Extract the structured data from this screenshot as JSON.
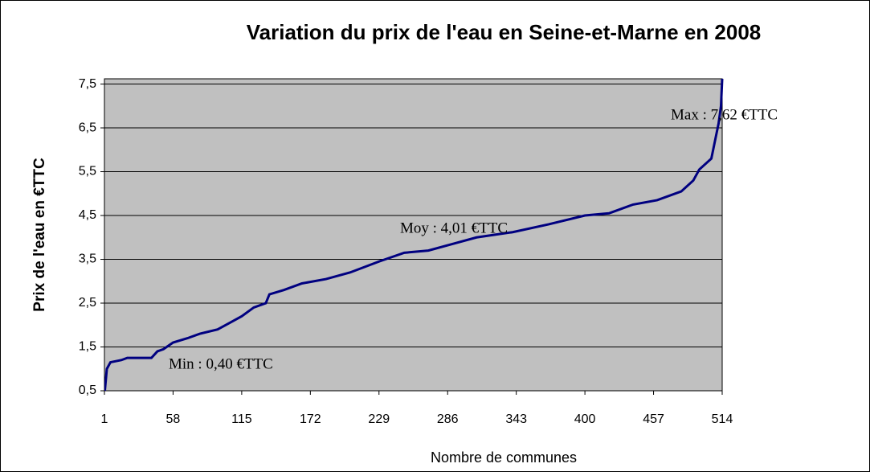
{
  "chart_data": {
    "type": "line",
    "title": "Variation du prix de l'eau en Seine-et-Marne en 2008",
    "x_label": "Nombre de communes",
    "y_label": "Prix de l'eau en €TTC",
    "annotations": [
      "Max : 7,62 €TTC",
      "Moy : 4,01 €TTC",
      "Min : 0,40 €TTC"
    ],
    "x": [
      1,
      3,
      6,
      15,
      20,
      40,
      45,
      50,
      58,
      70,
      80,
      95,
      105,
      115,
      125,
      135,
      138,
      150,
      165,
      185,
      205,
      229,
      250,
      270,
      290,
      310,
      340,
      370,
      400,
      420,
      440,
      460,
      480,
      490,
      495,
      505,
      508,
      511,
      513,
      514
    ],
    "series": [
      {
        "name": "Prix",
        "color": "#000080",
        "values": [
          0.4,
          1.0,
          1.15,
          1.2,
          1.25,
          1.25,
          1.4,
          1.45,
          1.6,
          1.7,
          1.8,
          1.9,
          2.05,
          2.2,
          2.4,
          2.5,
          2.7,
          2.8,
          2.95,
          3.05,
          3.2,
          3.45,
          3.65,
          3.7,
          3.85,
          4.0,
          4.12,
          4.3,
          4.5,
          4.55,
          4.75,
          4.85,
          5.05,
          5.3,
          5.55,
          5.8,
          6.2,
          6.6,
          7.0,
          7.62
        ]
      }
    ],
    "xlim": [
      1,
      514
    ],
    "xticks": [
      1,
      58,
      115,
      172,
      229,
      286,
      343,
      400,
      457,
      514
    ],
    "ylim": [
      0.5,
      7.62
    ],
    "yticks": [
      {
        "value": 0.5,
        "label": "0,5"
      },
      {
        "value": 1.5,
        "label": "1,5"
      },
      {
        "value": 2.5,
        "label": "2,5"
      },
      {
        "value": 3.5,
        "label": "3,5"
      },
      {
        "value": 4.5,
        "label": "4,5"
      },
      {
        "value": 5.5,
        "label": "5,5"
      },
      {
        "value": 6.5,
        "label": "6,5"
      },
      {
        "value": 7.5,
        "label": "7,5"
      }
    ],
    "grid": true,
    "plot_background": "#c0c0c0"
  }
}
